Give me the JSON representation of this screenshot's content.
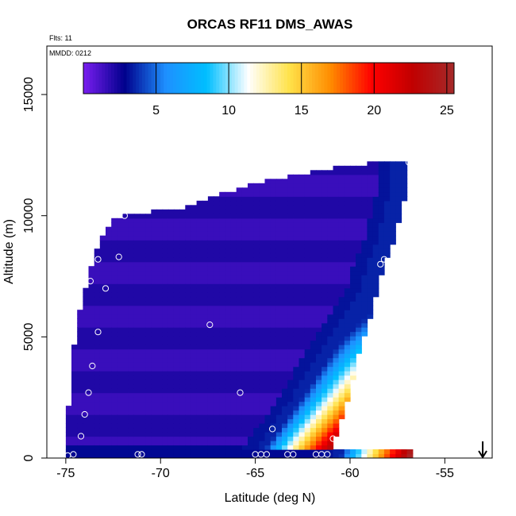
{
  "chart_data": {
    "type": "heatmap",
    "title": "ORCAS RF11 DMS_AWAS",
    "annotations": {
      "flights": "Flts: 11",
      "date": "MMDD: 0212"
    },
    "xlabel": "Latitude (deg N)",
    "ylabel": "Altitude (m)",
    "xlim": [
      -76,
      -52.5
    ],
    "ylim": [
      0,
      17000
    ],
    "xticks": [
      -75,
      -70,
      -65,
      -60,
      -55
    ],
    "yticks": [
      0,
      5000,
      10000,
      15000
    ],
    "colorbar": {
      "range": [
        0,
        25.5
      ],
      "ticks": [
        5,
        10,
        15,
        20,
        25
      ],
      "colors": [
        "#7a1ef0",
        "#00008c",
        "#1e90ff",
        "#00bfff",
        "#ffffff",
        "#ffe24a",
        "#ff8c00",
        "#ff0000",
        "#c00000",
        "#a52a2a"
      ]
    },
    "field": {
      "background_value": 1.5,
      "low_altitude_band_value": 3,
      "plume_peak_value": 25,
      "top_boundary": [
        [
          -75.2,
          300
        ],
        [
          -74.6,
          5500
        ],
        [
          -74,
          7300
        ],
        [
          -73.6,
          8500
        ],
        [
          -72.6,
          9800
        ],
        [
          -72,
          10000
        ],
        [
          -69,
          10200
        ],
        [
          -67,
          10800
        ],
        [
          -65,
          11300
        ],
        [
          -63,
          11600
        ],
        [
          -61,
          11900
        ],
        [
          -59,
          12100
        ],
        [
          -57,
          12200
        ]
      ],
      "right_boundary": [
        [
          -57,
          12200
        ],
        [
          -57.2,
          10800
        ],
        [
          -57.8,
          9000
        ],
        [
          -58.4,
          7800
        ],
        [
          -59,
          6000
        ],
        [
          -59.6,
          4500
        ],
        [
          -60.2,
          2500
        ],
        [
          -60.6,
          1500
        ],
        [
          -61.2,
          200
        ]
      ]
    },
    "samples": [
      {
        "lat": -74.9,
        "alt": 100
      },
      {
        "lat": -74.6,
        "alt": 150
      },
      {
        "lat": -74.2,
        "alt": 900
      },
      {
        "lat": -74.0,
        "alt": 1800
      },
      {
        "lat": -73.8,
        "alt": 2700
      },
      {
        "lat": -73.6,
        "alt": 3800
      },
      {
        "lat": -73.3,
        "alt": 5200
      },
      {
        "lat": -73.7,
        "alt": 7300
      },
      {
        "lat": -73.3,
        "alt": 8200
      },
      {
        "lat": -72.9,
        "alt": 7000
      },
      {
        "lat": -72.2,
        "alt": 8300
      },
      {
        "lat": -71.9,
        "alt": 10000
      },
      {
        "lat": -71.2,
        "alt": 150
      },
      {
        "lat": -71.0,
        "alt": 150
      },
      {
        "lat": -67.4,
        "alt": 5500
      },
      {
        "lat": -65.8,
        "alt": 2700
      },
      {
        "lat": -65.0,
        "alt": 150
      },
      {
        "lat": -64.7,
        "alt": 150
      },
      {
        "lat": -64.4,
        "alt": 150
      },
      {
        "lat": -64.1,
        "alt": 1200
      },
      {
        "lat": -63.3,
        "alt": 150
      },
      {
        "lat": -63.0,
        "alt": 150
      },
      {
        "lat": -61.8,
        "alt": 150
      },
      {
        "lat": -61.5,
        "alt": 150
      },
      {
        "lat": -61.2,
        "alt": 150
      },
      {
        "lat": -60.9,
        "alt": 800
      },
      {
        "lat": -58.4,
        "alt": 8000
      },
      {
        "lat": -58.2,
        "alt": 8200
      },
      {
        "lat": -56.9,
        "alt": 12200
      }
    ],
    "arrow_marker": {
      "lat": -53,
      "direction": "down"
    }
  }
}
